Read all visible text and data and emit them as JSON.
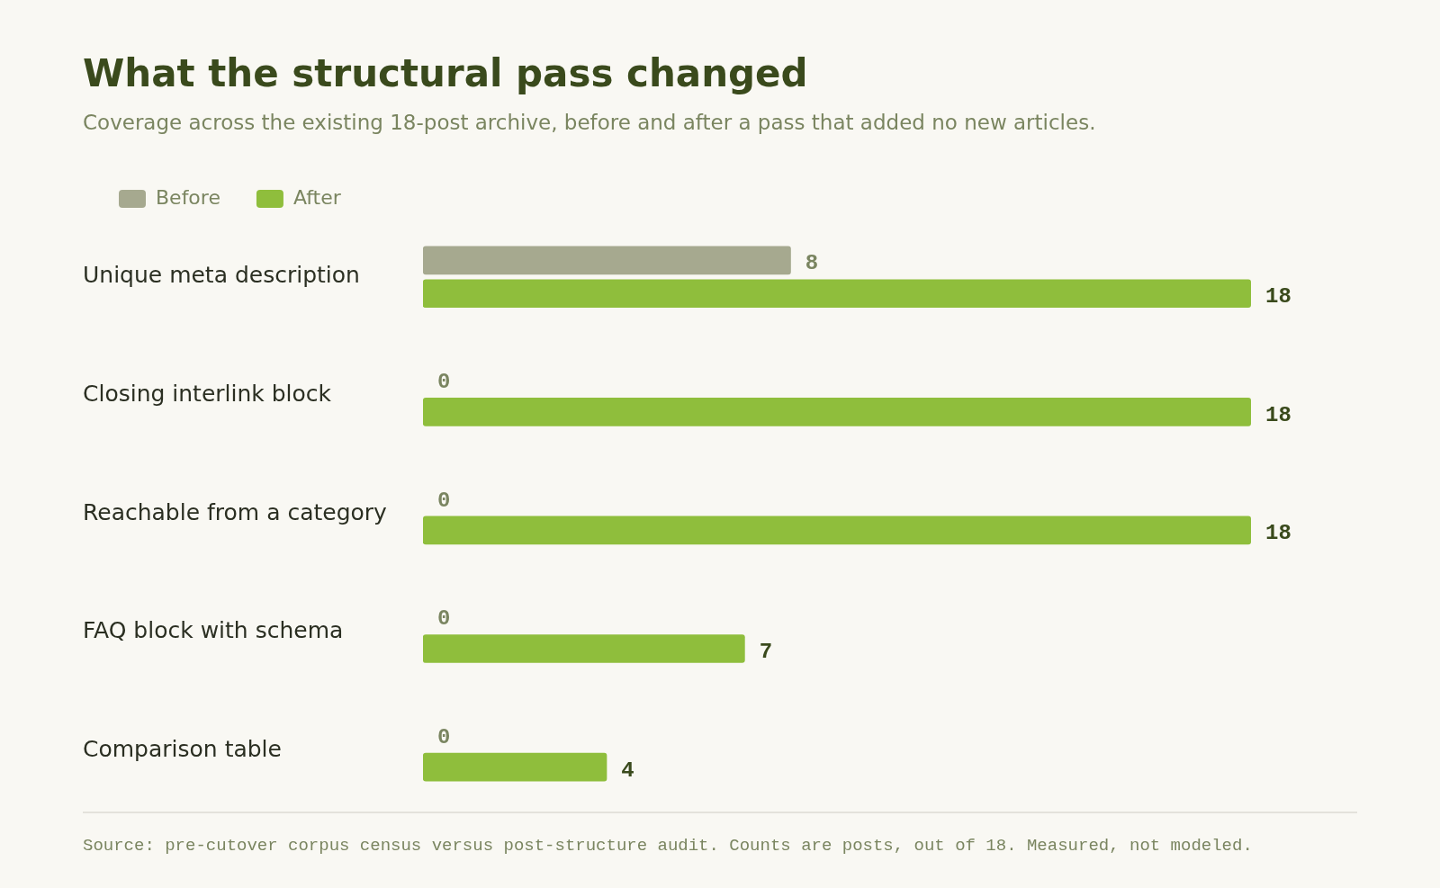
{
  "chart_data": {
    "type": "bar",
    "orientation": "horizontal",
    "title": "What the structural pass changed",
    "subtitle": "Coverage across the existing 18-post archive, before and after a pass that added no new articles.",
    "categories": [
      "Unique meta description",
      "Closing interlink block",
      "Reachable from a category",
      "FAQ block with schema",
      "Comparison table"
    ],
    "series": [
      {
        "name": "Before",
        "color": "#a6a98f",
        "values": [
          8,
          0,
          0,
          0,
          0
        ]
      },
      {
        "name": "After",
        "color": "#8fbe3c",
        "values": [
          18,
          18,
          18,
          7,
          4
        ]
      }
    ],
    "xlim": [
      0,
      18
    ],
    "tick_labels": "y",
    "grid": false,
    "legend": "top left",
    "data_labels": true,
    "annotations": [
      "Source: pre-cutover corpus census versus post-structure audit. Counts are posts, out of 18. Measured, not modeled."
    ]
  }
}
